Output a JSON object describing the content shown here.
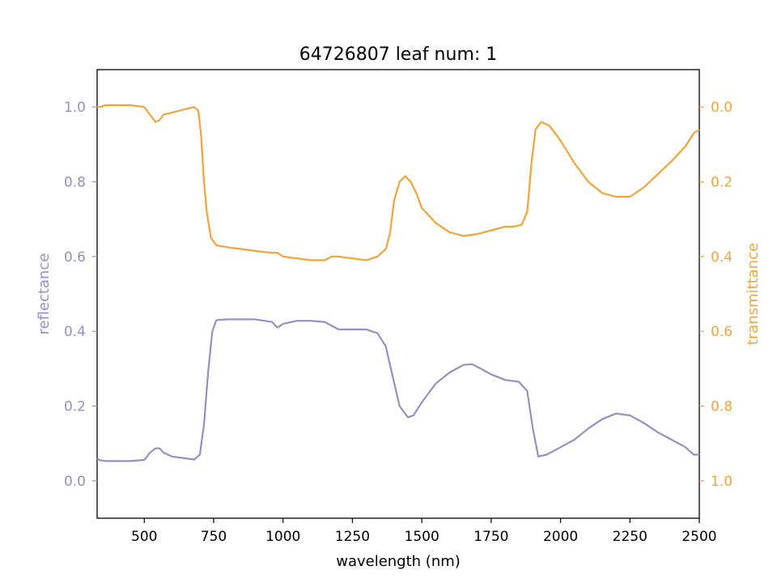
{
  "chart_data": {
    "type": "line",
    "title": "64726807 leaf num: 1",
    "xlabel": "wavelength (nm)",
    "ylabel_left": "reflectance",
    "ylabel_right": "transmittance",
    "xlim": [
      330,
      2500
    ],
    "ylim_left": [
      -0.1,
      1.1
    ],
    "ylim_right": [
      1.1,
      -0.1
    ],
    "right_axis_inverted": true,
    "grid": false,
    "legend": "none",
    "x_ticks": [
      500,
      750,
      1000,
      1250,
      1500,
      1750,
      2000,
      2250,
      2500
    ],
    "y_ticks_left": [
      0.0,
      0.2,
      0.4,
      0.6,
      0.8,
      1.0
    ],
    "y_ticks_right": [
      0.0,
      0.2,
      0.4,
      0.6,
      0.8,
      1.0
    ],
    "x_tick_labels": [
      "500",
      "750",
      "1000",
      "1250",
      "1500",
      "1750",
      "2000",
      "2250",
      "2500"
    ],
    "y_tick_labels_left": [
      "0.0",
      "0.2",
      "0.4",
      "0.6",
      "0.8",
      "1.0"
    ],
    "y_tick_labels_right": [
      "0.0",
      "0.2",
      "0.4",
      "0.6",
      "0.8",
      "1.0"
    ],
    "colors": {
      "reflectance": "#9590c4",
      "transmittance": "#f0a43a"
    },
    "series": [
      {
        "axis": "left",
        "x": [
          330,
          340,
          360,
          400,
          450,
          500,
          520,
          540,
          555,
          570,
          600,
          650,
          680,
          700,
          715,
          730,
          745,
          760,
          800,
          900,
          960,
          980,
          1000,
          1050,
          1100,
          1150,
          1200,
          1250,
          1300,
          1340,
          1370,
          1395,
          1420,
          1450,
          1470,
          1500,
          1550,
          1600,
          1650,
          1680,
          1700,
          1750,
          1800,
          1850,
          1880,
          1900,
          1920,
          1950,
          2000,
          2050,
          2100,
          2150,
          2200,
          2250,
          2300,
          2350,
          2400,
          2450,
          2480,
          2500
        ],
        "y": [
          0.06,
          0.055,
          0.053,
          0.053,
          0.053,
          0.056,
          0.075,
          0.087,
          0.087,
          0.075,
          0.065,
          0.06,
          0.057,
          0.07,
          0.15,
          0.29,
          0.4,
          0.43,
          0.432,
          0.432,
          0.425,
          0.41,
          0.42,
          0.428,
          0.428,
          0.425,
          0.405,
          0.405,
          0.405,
          0.395,
          0.36,
          0.28,
          0.2,
          0.17,
          0.175,
          0.21,
          0.26,
          0.29,
          0.31,
          0.312,
          0.305,
          0.285,
          0.27,
          0.265,
          0.24,
          0.14,
          0.065,
          0.07,
          0.09,
          0.11,
          0.14,
          0.165,
          0.18,
          0.175,
          0.155,
          0.13,
          0.11,
          0.09,
          0.07,
          0.07
        ]
      },
      {
        "axis": "right",
        "x": [
          330,
          340,
          360,
          400,
          450,
          500,
          520,
          540,
          555,
          570,
          600,
          650,
          680,
          695,
          705,
          715,
          725,
          740,
          760,
          800,
          900,
          960,
          980,
          1000,
          1050,
          1100,
          1150,
          1175,
          1200,
          1250,
          1300,
          1340,
          1370,
          1385,
          1400,
          1420,
          1440,
          1460,
          1480,
          1500,
          1550,
          1600,
          1650,
          1700,
          1750,
          1800,
          1830,
          1860,
          1880,
          1895,
          1910,
          1930,
          1960,
          2000,
          2050,
          2100,
          2150,
          2200,
          2250,
          2300,
          2350,
          2400,
          2450,
          2480,
          2500
        ],
        "y": [
          0.0,
          0.0,
          -0.005,
          -0.005,
          -0.005,
          0.0,
          0.02,
          0.04,
          0.035,
          0.02,
          0.015,
          0.005,
          0.0,
          0.01,
          0.08,
          0.2,
          0.28,
          0.35,
          0.37,
          0.375,
          0.385,
          0.39,
          0.39,
          0.4,
          0.405,
          0.41,
          0.41,
          0.4,
          0.4,
          0.405,
          0.41,
          0.4,
          0.38,
          0.34,
          0.25,
          0.2,
          0.185,
          0.2,
          0.23,
          0.27,
          0.31,
          0.335,
          0.345,
          0.34,
          0.33,
          0.32,
          0.32,
          0.315,
          0.28,
          0.15,
          0.06,
          0.04,
          0.05,
          0.09,
          0.15,
          0.2,
          0.23,
          0.24,
          0.24,
          0.215,
          0.18,
          0.145,
          0.105,
          0.07,
          0.06
        ]
      }
    ]
  }
}
